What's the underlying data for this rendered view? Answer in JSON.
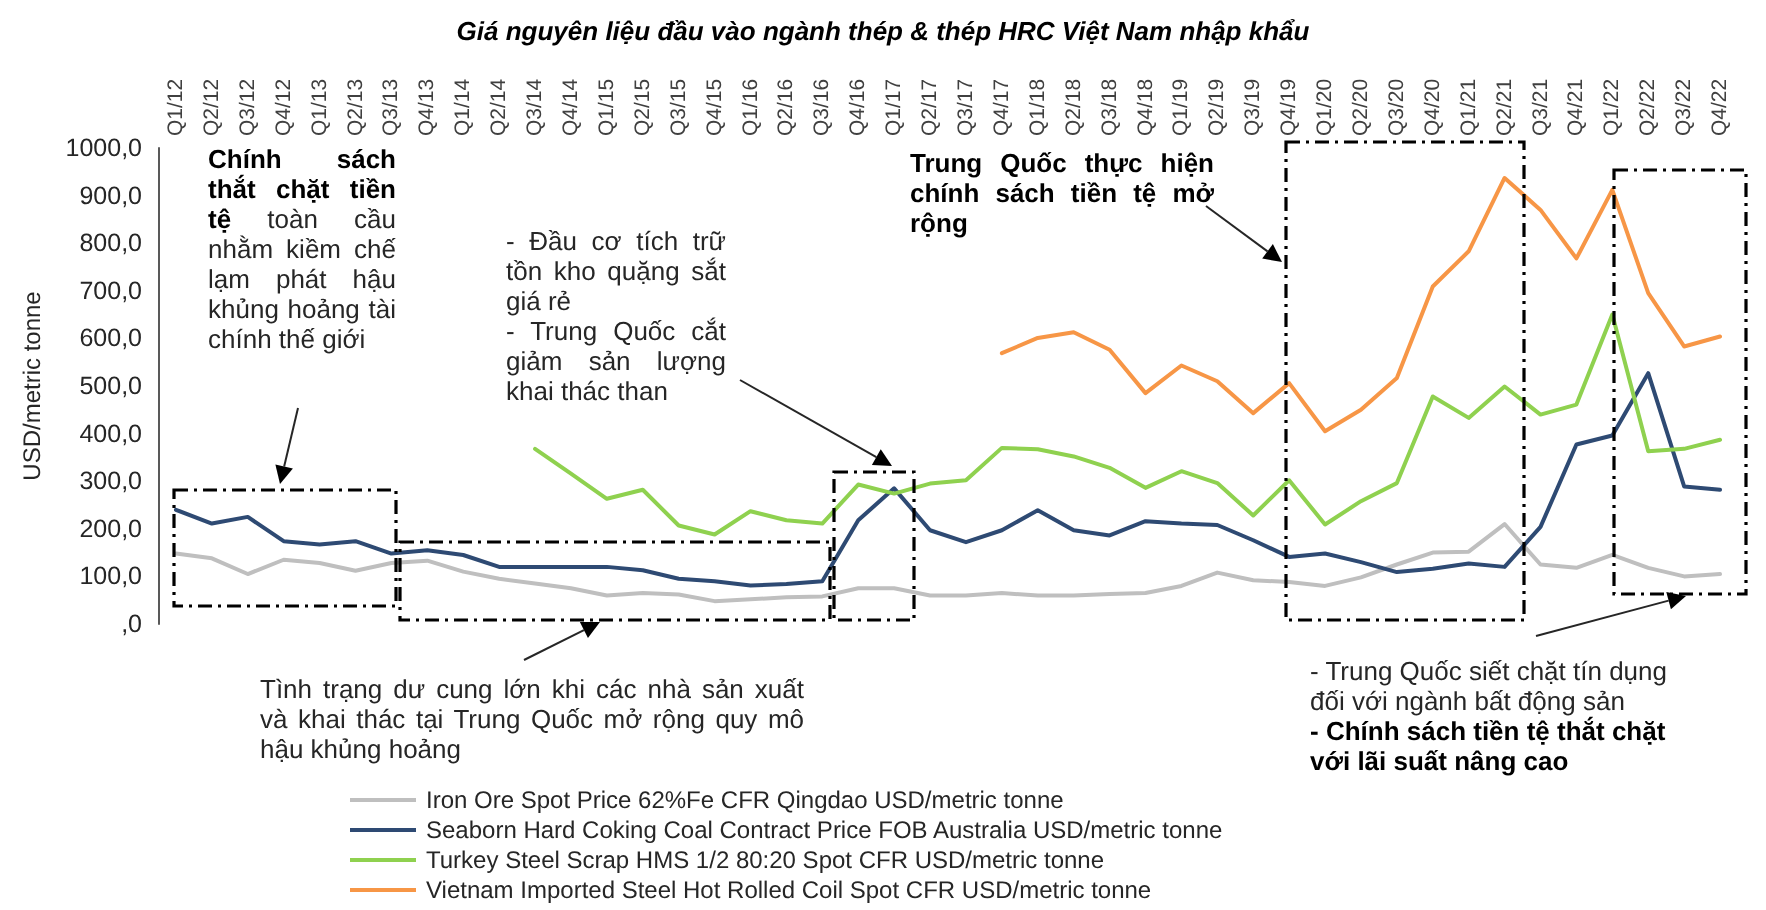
{
  "chart_data": {
    "type": "line",
    "title": "Giá nguyên liệu đầu vào ngành thép & thép HRC Việt Nam nhập khẩu",
    "ylabel": "USD/metric tonne",
    "categories": [
      "Q1/12",
      "Q2/12",
      "Q3/12",
      "Q4/12",
      "Q1/13",
      "Q2/13",
      "Q3/13",
      "Q4/13",
      "Q1/14",
      "Q2/14",
      "Q3/14",
      "Q4/14",
      "Q1/15",
      "Q2/15",
      "Q3/15",
      "Q4/15",
      "Q1/16",
      "Q2/16",
      "Q3/16",
      "Q4/16",
      "Q1/17",
      "Q2/17",
      "Q3/17",
      "Q4/17",
      "Q1/18",
      "Q2/18",
      "Q3/18",
      "Q4/18",
      "Q1/19",
      "Q2/19",
      "Q3/19",
      "Q4/19",
      "Q1/20",
      "Q2/20",
      "Q3/20",
      "Q4/20",
      "Q1/21",
      "Q2/21",
      "Q3/21",
      "Q4/21",
      "Q1/22",
      "Q2/22",
      "Q3/22",
      "Q4/22"
    ],
    "series": [
      {
        "name": "Iron Ore Spot Price 62%Fe CFR Qingdao USD/metric tonne",
        "color": "#bfbfbf",
        "values": [
          148,
          138,
          105,
          135,
          128,
          112,
          128,
          133,
          110,
          95,
          85,
          75,
          60,
          65,
          62,
          48,
          52,
          56,
          58,
          75,
          75,
          60,
          60,
          65,
          60,
          60,
          63,
          65,
          80,
          108,
          92,
          88,
          80,
          98,
          125,
          150,
          152,
          210,
          125,
          118,
          145,
          118,
          100,
          105
        ]
      },
      {
        "name": "Seaborn Hard Coking Coal Contract Price FOB Australia USD/metric tonne",
        "color": "#2e4a73",
        "values": [
          240,
          211,
          225,
          174,
          167,
          174,
          148,
          155,
          145,
          120,
          120,
          120,
          120,
          113,
          95,
          90,
          81,
          84,
          90,
          218,
          285,
          197,
          172,
          197,
          239,
          197,
          186,
          216,
          211,
          208,
          176,
          141,
          148,
          130,
          109,
          116,
          127,
          120,
          204,
          377,
          396,
          527,
          289,
          282
        ]
      },
      {
        "name": "Turkey Steel Scrap HMS 1/2 80:20 Spot CFR USD/metric tonne",
        "color": "#8fd14f",
        "values": [
          null,
          null,
          null,
          null,
          null,
          null,
          null,
          null,
          null,
          null,
          368,
          316,
          263,
          282,
          207,
          188,
          237,
          218,
          211,
          293,
          274,
          295,
          302,
          370,
          367,
          352,
          328,
          286,
          321,
          296,
          228,
          302,
          209,
          258,
          296,
          478,
          433,
          499,
          440,
          461,
          650,
          363,
          368,
          387
        ]
      },
      {
        "name": "Vietnam Imported Steel Hot Rolled Coil Spot CFR USD/metric tonne",
        "color": "#f79646",
        "values": [
          null,
          null,
          null,
          null,
          null,
          null,
          null,
          null,
          null,
          null,
          null,
          null,
          null,
          null,
          null,
          null,
          null,
          null,
          null,
          null,
          null,
          null,
          null,
          569,
          601,
          613,
          576,
          485,
          543,
          510,
          443,
          506,
          405,
          450,
          517,
          709,
          783,
          937,
          870,
          768,
          912,
          695,
          583,
          604
        ]
      }
    ],
    "ylim": [
      0,
      1000
    ],
    "yticks": [
      {
        "value": 0,
        "label": ",0"
      },
      {
        "value": 100,
        "label": "100,0"
      },
      {
        "value": 200,
        "label": "200,0"
      },
      {
        "value": 300,
        "label": "300,0"
      },
      {
        "value": 400,
        "label": "400,0"
      },
      {
        "value": 500,
        "label": "500,0"
      },
      {
        "value": 600,
        "label": "600,0"
      },
      {
        "value": 700,
        "label": "700,0"
      },
      {
        "value": 800,
        "label": "800,0"
      },
      {
        "value": 900,
        "label": "900,0"
      },
      {
        "value": 1000,
        "label": "1000,0"
      }
    ],
    "grid": false,
    "legend": "bottom",
    "marker": "none",
    "annotations": [
      "Chính sách thắt chặt tiền tệ",
      "toàn cầu nhằm kiềm chế lạm phát hậu khủng hoảng tài chính thế giới",
      "- Đầu cơ tích trữ tồn kho quặng sắt giá rẻ",
      "- Trung Quốc cắt giảm sản lượng khai thác than",
      "Trung Quốc thực hiện chính sách tiền tệ mở rộng",
      "Tình trạng dư cung lớn khi các nhà sản xuất và khai thác tại Trung Quốc mở rộng quy mô hậu khủng hoảng",
      "- Trung Quốc siết chặt tín dụng đối với ngành bất động sản",
      "- Chính sách tiền tệ thắt chặt với lãi suất nâng cao"
    ]
  }
}
